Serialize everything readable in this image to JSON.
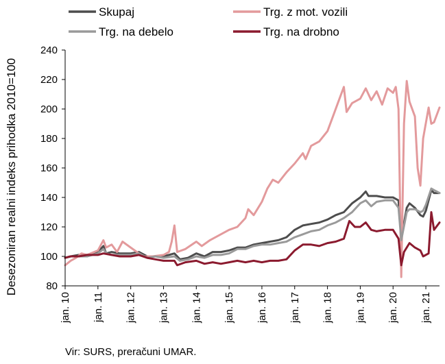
{
  "chart_data": {
    "type": "line",
    "ylabel": "Desezoniran realni indeks prihodka 2010=100",
    "ylim": [
      80,
      240
    ],
    "yticks": [
      80,
      100,
      120,
      140,
      160,
      180,
      200,
      220,
      240
    ],
    "x_start": "2010-01",
    "x_end": "2021-06",
    "xtick_labels": [
      "jan. 10",
      "jan. 11",
      "jan. 12",
      "jan. 13",
      "jan. 14",
      "jan. 15",
      "jan. 16",
      "jan. 17",
      "jan. 18",
      "jan. 19",
      "jan. 20",
      "jan. 21"
    ],
    "grid": false,
    "legend": "top",
    "source": "Vir: SURS, preračuni UMAR.",
    "series": [
      {
        "name": "Skupaj",
        "color": "#4d4d4d",
        "points": [
          [
            "2010-01",
            99
          ],
          [
            "2010-03",
            100
          ],
          [
            "2010-06",
            101
          ],
          [
            "2010-09",
            100
          ],
          [
            "2011-01",
            103
          ],
          [
            "2011-03",
            107
          ],
          [
            "2011-04",
            102
          ],
          [
            "2011-06",
            103
          ],
          [
            "2011-09",
            102
          ],
          [
            "2012-01",
            102
          ],
          [
            "2012-04",
            103
          ],
          [
            "2012-07",
            100
          ],
          [
            "2012-10",
            100
          ],
          [
            "2013-01",
            100
          ],
          [
            "2013-05",
            102
          ],
          [
            "2013-07",
            98
          ],
          [
            "2013-10",
            99
          ],
          [
            "2014-01",
            102
          ],
          [
            "2014-04",
            100
          ],
          [
            "2014-07",
            103
          ],
          [
            "2014-10",
            103
          ],
          [
            "2015-01",
            104
          ],
          [
            "2015-04",
            106
          ],
          [
            "2015-07",
            106
          ],
          [
            "2015-10",
            108
          ],
          [
            "2016-01",
            109
          ],
          [
            "2016-04",
            110
          ],
          [
            "2016-07",
            111
          ],
          [
            "2016-10",
            113
          ],
          [
            "2017-01",
            118
          ],
          [
            "2017-04",
            121
          ],
          [
            "2017-07",
            122
          ],
          [
            "2017-10",
            123
          ],
          [
            "2018-01",
            125
          ],
          [
            "2018-04",
            128
          ],
          [
            "2018-07",
            130
          ],
          [
            "2018-10",
            136
          ],
          [
            "2019-01",
            140
          ],
          [
            "2019-03",
            144
          ],
          [
            "2019-04",
            141
          ],
          [
            "2019-07",
            141
          ],
          [
            "2019-10",
            140
          ],
          [
            "2020-01",
            140
          ],
          [
            "2020-03",
            138
          ],
          [
            "2020-04",
            112
          ],
          [
            "2020-06",
            133
          ],
          [
            "2020-07",
            136
          ],
          [
            "2020-09",
            133
          ],
          [
            "2020-11",
            128
          ],
          [
            "2020-12",
            127
          ],
          [
            "2021-01",
            131
          ],
          [
            "2021-03",
            145
          ],
          [
            "2021-04",
            143
          ],
          [
            "2021-06",
            143
          ]
        ]
      },
      {
        "name": "Trg. z mot. vozili",
        "color": "#e39a9c",
        "points": [
          [
            "2010-01",
            94
          ],
          [
            "2010-03",
            97
          ],
          [
            "2010-05",
            99
          ],
          [
            "2010-07",
            102
          ],
          [
            "2010-09",
            101
          ],
          [
            "2011-01",
            104
          ],
          [
            "2011-03",
            111
          ],
          [
            "2011-04",
            106
          ],
          [
            "2011-06",
            108
          ],
          [
            "2011-08",
            103
          ],
          [
            "2011-10",
            110
          ],
          [
            "2012-01",
            106
          ],
          [
            "2012-04",
            102
          ],
          [
            "2012-06",
            100
          ],
          [
            "2012-09",
            100
          ],
          [
            "2013-01",
            101
          ],
          [
            "2013-03",
            103
          ],
          [
            "2013-04",
            110
          ],
          [
            "2013-05",
            121
          ],
          [
            "2013-06",
            103
          ],
          [
            "2013-09",
            105
          ],
          [
            "2014-01",
            110
          ],
          [
            "2014-03",
            107
          ],
          [
            "2014-06",
            111
          ],
          [
            "2014-09",
            114
          ],
          [
            "2015-01",
            118
          ],
          [
            "2015-04",
            120
          ],
          [
            "2015-07",
            126
          ],
          [
            "2015-08",
            132
          ],
          [
            "2015-10",
            128
          ],
          [
            "2016-01",
            137
          ],
          [
            "2016-03",
            146
          ],
          [
            "2016-05",
            152
          ],
          [
            "2016-07",
            150
          ],
          [
            "2016-10",
            157
          ],
          [
            "2017-01",
            163
          ],
          [
            "2017-04",
            170
          ],
          [
            "2017-05",
            166
          ],
          [
            "2017-07",
            175
          ],
          [
            "2017-10",
            178
          ],
          [
            "2018-01",
            185
          ],
          [
            "2018-03",
            195
          ],
          [
            "2018-05",
            205
          ],
          [
            "2018-07",
            215
          ],
          [
            "2018-08",
            198
          ],
          [
            "2018-10",
            204
          ],
          [
            "2019-01",
            207
          ],
          [
            "2019-03",
            214
          ],
          [
            "2019-05",
            206
          ],
          [
            "2019-07",
            212
          ],
          [
            "2019-09",
            203
          ],
          [
            "2019-11",
            214
          ],
          [
            "2020-01",
            211
          ],
          [
            "2020-02",
            215
          ],
          [
            "2020-03",
            200
          ],
          [
            "2020-04",
            86
          ],
          [
            "2020-05",
            190
          ],
          [
            "2020-06",
            219
          ],
          [
            "2020-07",
            205
          ],
          [
            "2020-09",
            195
          ],
          [
            "2020-10",
            160
          ],
          [
            "2020-11",
            148
          ],
          [
            "2020-12",
            180
          ],
          [
            "2021-02",
            201
          ],
          [
            "2021-03",
            190
          ],
          [
            "2021-04",
            191
          ],
          [
            "2021-06",
            201
          ]
        ]
      },
      {
        "name": "Trg. na debelo",
        "color": "#9a9a9a",
        "points": [
          [
            "2010-01",
            99
          ],
          [
            "2010-03",
            100
          ],
          [
            "2010-06",
            100
          ],
          [
            "2010-09",
            100
          ],
          [
            "2011-01",
            102
          ],
          [
            "2011-03",
            105
          ],
          [
            "2011-04",
            102
          ],
          [
            "2011-06",
            101
          ],
          [
            "2011-09",
            101
          ],
          [
            "2012-01",
            101
          ],
          [
            "2012-04",
            102
          ],
          [
            "2012-07",
            99
          ],
          [
            "2012-10",
            100
          ],
          [
            "2013-01",
            99
          ],
          [
            "2013-05",
            100
          ],
          [
            "2013-07",
            97
          ],
          [
            "2013-10",
            98
          ],
          [
            "2014-01",
            100
          ],
          [
            "2014-04",
            99
          ],
          [
            "2014-07",
            101
          ],
          [
            "2014-10",
            101
          ],
          [
            "2015-01",
            102
          ],
          [
            "2015-04",
            105
          ],
          [
            "2015-07",
            105
          ],
          [
            "2015-10",
            107
          ],
          [
            "2016-01",
            108
          ],
          [
            "2016-04",
            108
          ],
          [
            "2016-07",
            109
          ],
          [
            "2016-10",
            110
          ],
          [
            "2017-01",
            113
          ],
          [
            "2017-04",
            115
          ],
          [
            "2017-07",
            117
          ],
          [
            "2017-10",
            118
          ],
          [
            "2018-01",
            121
          ],
          [
            "2018-04",
            123
          ],
          [
            "2018-07",
            126
          ],
          [
            "2018-10",
            130
          ],
          [
            "2019-01",
            136
          ],
          [
            "2019-03",
            138
          ],
          [
            "2019-05",
            134
          ],
          [
            "2019-07",
            137
          ],
          [
            "2019-10",
            138
          ],
          [
            "2020-01",
            138
          ],
          [
            "2020-03",
            133
          ],
          [
            "2020-04",
            111
          ],
          [
            "2020-06",
            130
          ],
          [
            "2020-07",
            132
          ],
          [
            "2020-09",
            132
          ],
          [
            "2020-11",
            130
          ],
          [
            "2020-12",
            131
          ],
          [
            "2021-01",
            135
          ],
          [
            "2021-03",
            146
          ],
          [
            "2021-04",
            145
          ],
          [
            "2021-06",
            143
          ]
        ]
      },
      {
        "name": "Trg. na drobno",
        "color": "#8b1a2e",
        "points": [
          [
            "2010-01",
            99
          ],
          [
            "2010-03",
            100
          ],
          [
            "2010-06",
            100
          ],
          [
            "2010-09",
            101
          ],
          [
            "2011-01",
            101
          ],
          [
            "2011-03",
            102
          ],
          [
            "2011-06",
            101
          ],
          [
            "2011-09",
            100
          ],
          [
            "2012-01",
            100
          ],
          [
            "2012-04",
            101
          ],
          [
            "2012-07",
            99
          ],
          [
            "2012-10",
            98
          ],
          [
            "2013-01",
            97
          ],
          [
            "2013-05",
            97
          ],
          [
            "2013-06",
            94
          ],
          [
            "2013-09",
            96
          ],
          [
            "2014-01",
            97
          ],
          [
            "2014-04",
            95
          ],
          [
            "2014-07",
            96
          ],
          [
            "2014-10",
            95
          ],
          [
            "2015-01",
            96
          ],
          [
            "2015-04",
            97
          ],
          [
            "2015-07",
            96
          ],
          [
            "2015-10",
            97
          ],
          [
            "2016-01",
            96
          ],
          [
            "2016-04",
            97
          ],
          [
            "2016-07",
            97
          ],
          [
            "2016-10",
            98
          ],
          [
            "2017-01",
            104
          ],
          [
            "2017-04",
            108
          ],
          [
            "2017-07",
            108
          ],
          [
            "2017-10",
            107
          ],
          [
            "2018-01",
            109
          ],
          [
            "2018-04",
            110
          ],
          [
            "2018-07",
            112
          ],
          [
            "2018-09",
            124
          ],
          [
            "2018-11",
            120
          ],
          [
            "2019-01",
            120
          ],
          [
            "2019-03",
            123
          ],
          [
            "2019-05",
            118
          ],
          [
            "2019-07",
            117
          ],
          [
            "2019-10",
            118
          ],
          [
            "2020-01",
            118
          ],
          [
            "2020-03",
            112
          ],
          [
            "2020-04",
            94
          ],
          [
            "2020-05",
            103
          ],
          [
            "2020-07",
            109
          ],
          [
            "2020-09",
            106
          ],
          [
            "2020-11",
            104
          ],
          [
            "2020-12",
            100
          ],
          [
            "2021-02",
            102
          ],
          [
            "2021-03",
            130
          ],
          [
            "2021-04",
            118
          ],
          [
            "2021-06",
            123
          ]
        ]
      }
    ]
  }
}
